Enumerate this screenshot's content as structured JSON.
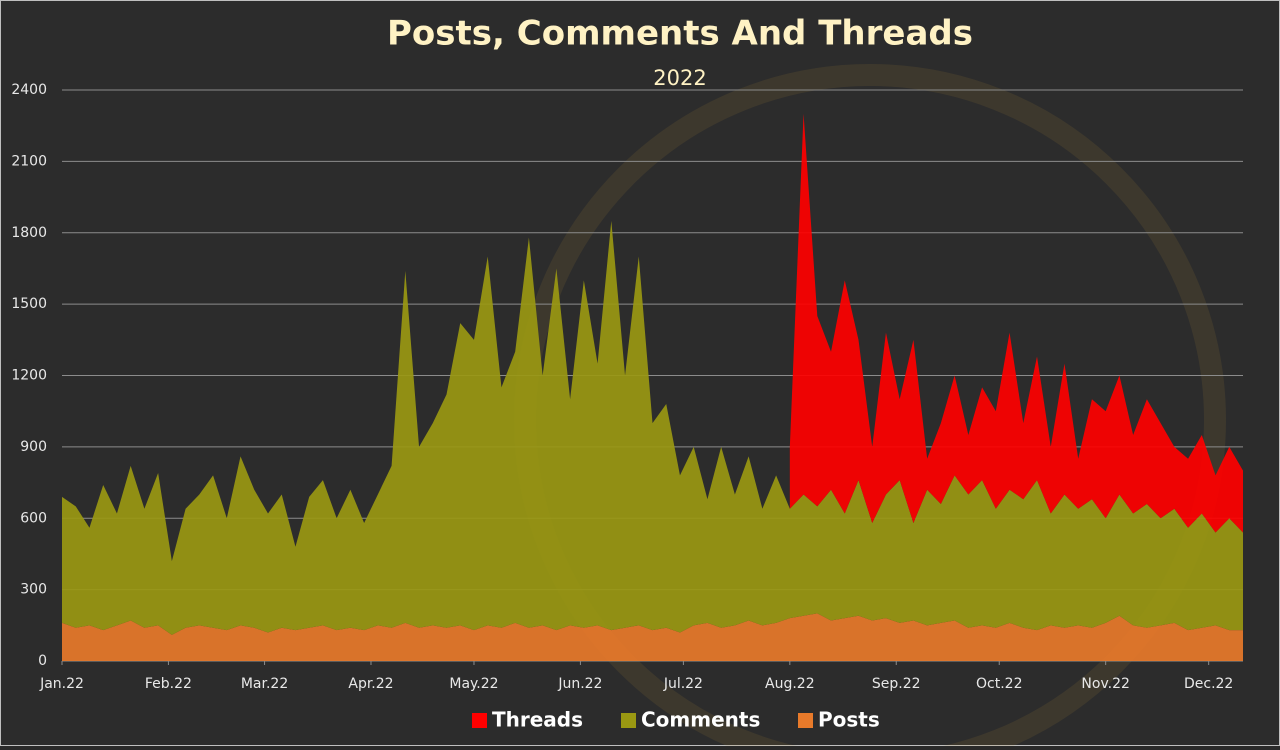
{
  "chart_data": {
    "type": "stacked-area",
    "title": "Posts, Comments And Threads",
    "subtitle": "2022",
    "x": [
      0,
      4,
      8,
      12,
      16,
      20,
      24,
      28,
      32,
      36,
      40,
      44,
      48,
      52,
      56,
      60,
      64,
      68,
      72,
      76,
      80,
      84,
      88,
      92,
      96,
      100,
      104,
      108,
      112,
      116,
      120,
      124,
      128,
      132,
      136,
      140,
      144,
      148,
      152,
      156,
      160,
      164,
      168,
      172,
      176,
      180,
      184,
      188,
      192,
      196,
      200,
      204,
      208,
      212,
      216,
      220,
      224,
      228,
      232,
      236,
      240,
      244,
      248,
      252,
      256,
      260,
      264,
      268,
      272,
      276,
      280,
      284,
      288,
      292,
      296,
      300,
      304,
      308,
      312,
      316,
      320,
      324,
      328,
      332,
      336,
      340,
      344
    ],
    "xlim": [
      0,
      344
    ],
    "xticks": [
      {
        "value": 0,
        "label": "Jan.22"
      },
      {
        "value": 31,
        "label": "Feb.22"
      },
      {
        "value": 59,
        "label": "Mar.22"
      },
      {
        "value": 90,
        "label": "Apr.22"
      },
      {
        "value": 120,
        "label": "May.22"
      },
      {
        "value": 151,
        "label": "Jun.22"
      },
      {
        "value": 181,
        "label": "Jul.22"
      },
      {
        "value": 212,
        "label": "Aug.22"
      },
      {
        "value": 243,
        "label": "Sep.22"
      },
      {
        "value": 273,
        "label": "Oct.22"
      },
      {
        "value": 304,
        "label": "Nov.22"
      },
      {
        "value": 334,
        "label": "Dec.22"
      }
    ],
    "ylim": [
      0,
      2400
    ],
    "yticks": [
      0,
      300,
      600,
      900,
      1200,
      1500,
      1800,
      2100,
      2400
    ],
    "grid": true,
    "legend": "bottom",
    "series": [
      {
        "name": "Posts",
        "color": "#e87a2a",
        "values": [
          160,
          140,
          150,
          130,
          150,
          170,
          140,
          150,
          110,
          140,
          150,
          140,
          130,
          150,
          140,
          120,
          140,
          130,
          140,
          150,
          130,
          140,
          130,
          150,
          140,
          160,
          140,
          150,
          140,
          150,
          130,
          150,
          140,
          160,
          140,
          150,
          130,
          150,
          140,
          150,
          130,
          140,
          150,
          130,
          140,
          120,
          150,
          160,
          140,
          150,
          170,
          150,
          160,
          180,
          190,
          200,
          170,
          180,
          190,
          170,
          180,
          160,
          170,
          150,
          160,
          170,
          140,
          150,
          140,
          160,
          140,
          130,
          150,
          140,
          150,
          140,
          160,
          190,
          150,
          140,
          150,
          160,
          130,
          140,
          150,
          130,
          130
        ]
      },
      {
        "name": "Comments",
        "color": "#9a9812",
        "values": [
          530,
          510,
          410,
          610,
          470,
          650,
          500,
          640,
          310,
          500,
          550,
          640,
          470,
          710,
          580,
          500,
          560,
          350,
          550,
          610,
          470,
          580,
          450,
          550,
          680,
          1480,
          760,
          850,
          980,
          1270,
          1220,
          1550,
          1010,
          1140,
          1640,
          1050,
          1520,
          950,
          1460,
          1100,
          1720,
          1060,
          1550,
          870,
          940,
          660,
          750,
          520,
          760,
          550,
          690,
          490,
          620,
          460,
          510,
          450,
          550,
          440,
          570,
          410,
          520,
          600,
          410,
          570,
          500,
          610,
          560,
          610,
          500,
          560,
          540,
          630,
          470,
          560,
          490,
          540,
          440,
          510,
          470,
          520,
          450,
          480,
          430,
          480,
          390,
          470,
          410
        ]
      },
      {
        "name": "Threads",
        "color": "#ff0000",
        "values": [
          null,
          null,
          null,
          null,
          null,
          null,
          null,
          null,
          null,
          null,
          null,
          null,
          null,
          null,
          null,
          null,
          null,
          null,
          null,
          null,
          null,
          null,
          null,
          null,
          null,
          null,
          null,
          null,
          null,
          null,
          null,
          null,
          null,
          null,
          null,
          null,
          null,
          null,
          null,
          null,
          null,
          null,
          null,
          null,
          null,
          null,
          null,
          null,
          null,
          null,
          null,
          null,
          null,
          260,
          1600,
          800,
          580,
          980,
          590,
          320,
          680,
          340,
          770,
          130,
          340,
          420,
          250,
          390,
          410,
          660,
          320,
          520,
          280,
          550,
          210,
          420,
          450,
          500,
          330,
          440,
          400,
          260,
          290,
          330,
          240,
          300,
          260
        ]
      }
    ]
  }
}
